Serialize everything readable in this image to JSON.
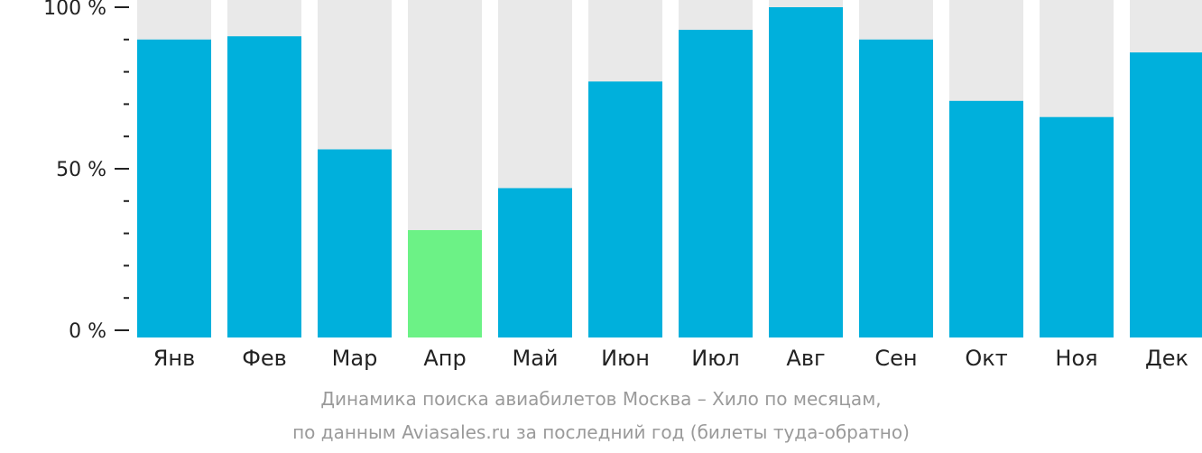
{
  "chart_data": {
    "type": "bar",
    "categories": [
      "Янв",
      "Фев",
      "Мар",
      "Апр",
      "Май",
      "Июн",
      "Июл",
      "Авг",
      "Сен",
      "Окт",
      "Ноя",
      "Дек"
    ],
    "values": [
      90,
      91,
      56,
      31,
      44,
      77,
      93,
      100,
      90,
      71,
      66,
      86
    ],
    "highlight_index": 3,
    "ylim": [
      0,
      100
    ],
    "y_ticks": [
      {
        "value": 0,
        "label": "0 %"
      },
      {
        "value": 50,
        "label": "50 %"
      },
      {
        "value": 100,
        "label": "100 %"
      }
    ],
    "minor_tick_step": 10,
    "colors": {
      "bar": "#00b0dc",
      "highlight": "#6cf286",
      "background": "#e9e9e9",
      "axis": "#222222"
    },
    "caption_line1": "Динамика поиска авиабилетов Москва – Хило по месяцам,",
    "caption_line2": "по данным Aviasales.ru за последний год (билеты туда-обратно)"
  }
}
